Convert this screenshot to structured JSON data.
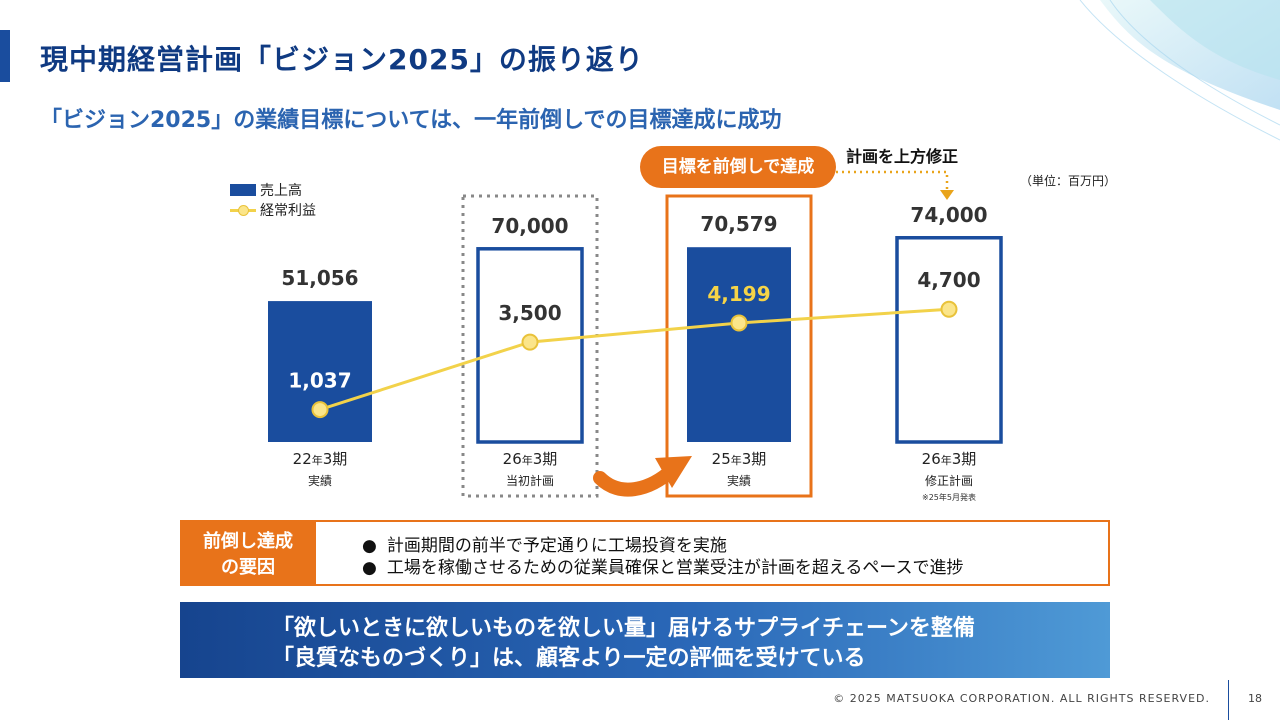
{
  "title": "現中期経営計画「ビジョン2025」の振り返り",
  "subtitle": "「ビジョン2025」の業績目標については、一年前倒しでの目標達成に成功",
  "callout": "目標を前倒しで達成",
  "revise_note": "計画を上方修正",
  "unit": "（単位：百万円）",
  "legend": {
    "sales": "売上高",
    "profit": "経常利益"
  },
  "chart_data": {
    "type": "bar",
    "categories": [
      "22年3期 実績",
      "26年3期 当初計画",
      "25年3期 実績",
      "26年3期 修正計画"
    ],
    "period_labels": [
      {
        "year": "22",
        "mid": "年",
        "term": "3期",
        "sub": "実績"
      },
      {
        "year": "26",
        "mid": "年",
        "term": "3期",
        "sub": "当初計画"
      },
      {
        "year": "25",
        "mid": "年",
        "term": "3期",
        "sub": "実績"
      },
      {
        "year": "26",
        "mid": "年",
        "term": "3期",
        "sub": "修正計画"
      }
    ],
    "note": "※25年5月発表",
    "series": [
      {
        "name": "売上高",
        "values": [
          51056,
          70000,
          70579,
          74000
        ],
        "labels": [
          "51,056",
          "70,000",
          "70,579",
          "74,000"
        ]
      },
      {
        "name": "経常利益",
        "values": [
          1037,
          3500,
          4199,
          4700
        ],
        "labels": [
          "1,037",
          "3,500",
          "4,199",
          "4,700"
        ]
      }
    ],
    "bar_style": [
      "actual",
      "plan",
      "actual",
      "plan"
    ]
  },
  "factors": {
    "tag_line1": "前倒し達成",
    "tag_line2": "の要因",
    "items": [
      "計画期間の前半で予定通りに工場投資を実施",
      "工場を稼働させるための従業員確保と営業受注が計画を超えるペースで進捗"
    ]
  },
  "banner": {
    "line1": "「欲しいときに欲しいものを欲しい量」届けるサプライチェーンを整備",
    "line2": "「良質なものづくり」は、顧客より一定の評価を受けている"
  },
  "colors": {
    "navy": "#1a4d9e",
    "orange": "#e8731a",
    "line": "#f2d24a",
    "dot": "#fbe58a"
  },
  "footer": "© 2025 MATSUOKA CORPORATION. ALL RIGHTS RESERVED.",
  "page_number": "18"
}
